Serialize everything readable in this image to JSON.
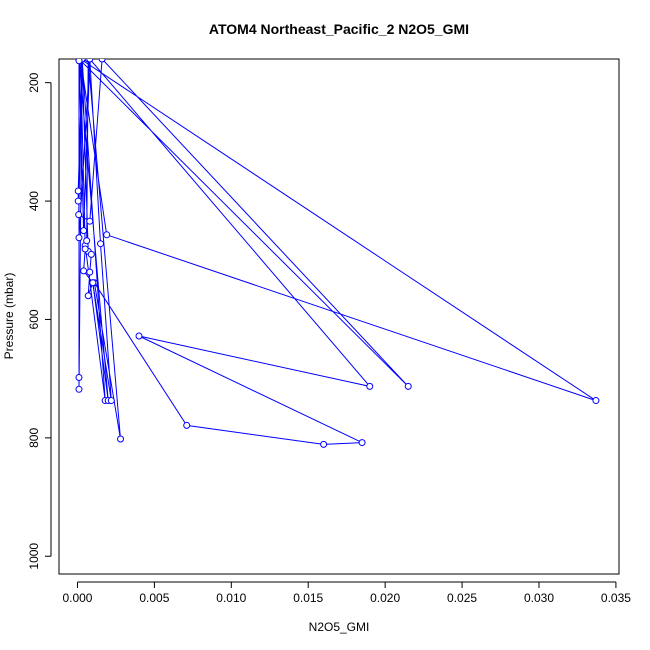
{
  "chart_data": {
    "type": "line",
    "title": "ATOM4 Northeast_Pacific_2 N2O5_GMI",
    "xlabel": "N2O5_GMI",
    "ylabel": "Pressure (mbar)",
    "xlim": [
      -0.0012,
      0.0352
    ],
    "ylim": [
      1030,
      160
    ],
    "y_reversed": true,
    "xticks": [
      0.0,
      0.005,
      0.01,
      0.015,
      0.02,
      0.025,
      0.03,
      0.035
    ],
    "xtick_labels": [
      "0.000",
      "0.005",
      "0.010",
      "0.015",
      "0.020",
      "0.025",
      "0.030",
      "0.035"
    ],
    "yticks": [
      200,
      400,
      600,
      800,
      1000
    ],
    "ytick_labels": [
      "200",
      "400",
      "600",
      "800",
      "1000"
    ],
    "grid": false,
    "series": [
      {
        "color": "#0000ff",
        "marker": "open-circle",
        "x": [
          0.0002,
          0.0019,
          0.0337,
          0.0002,
          0.0005,
          0.0018,
          0.0003,
          5e-05,
          5e-05,
          0.0003,
          8e-05,
          0.0008,
          0.0016,
          0.0215,
          0.0001,
          0.0001,
          0.0001,
          0.0003,
          0.0007,
          0.0009,
          0.0008,
          0.0007,
          0.001,
          0.002,
          0.0001,
          0.0004,
          0.0008,
          0.019,
          0.004,
          0.0185,
          0.016,
          0.0071,
          0.0011,
          0.0028,
          0.0007,
          0.0006,
          0.0005,
          0.0004,
          0.001,
          0.0022,
          0.0015,
          0.0008,
          0.0001,
          0.0001
        ],
        "y": [
          160,
          457,
          737,
          160,
          475,
          737,
          160,
          383,
          400,
          160,
          423,
          434,
          160,
          713,
          160,
          698,
          718,
          160,
          485,
          490,
          520,
          560,
          538,
          737,
          160,
          450,
          160,
          713,
          628,
          808,
          811,
          779,
          538,
          802,
          160,
          467,
          481,
          518,
          538,
          737,
          472,
          160,
          462,
          163
        ]
      }
    ]
  }
}
